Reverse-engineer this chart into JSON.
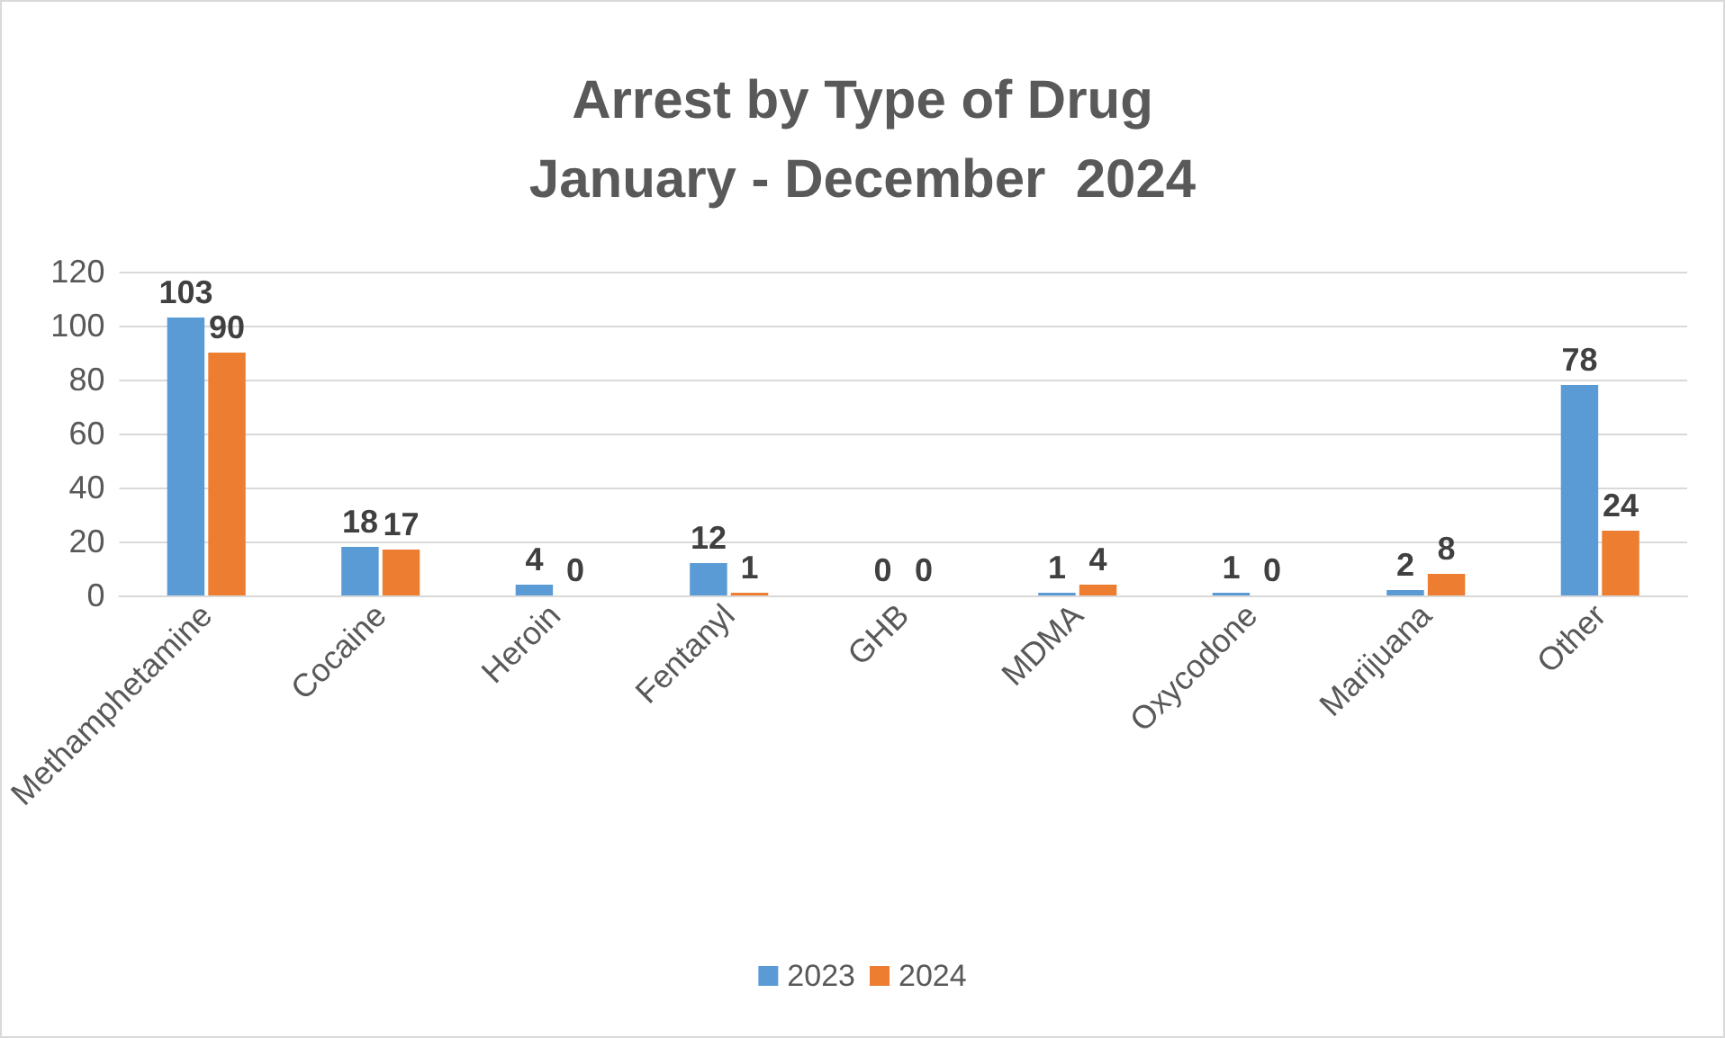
{
  "chart_data": {
    "type": "bar",
    "title": "Arrest by Type of Drug\nJanuary - December  2024",
    "categories": [
      "Methamphetamine",
      "Cocaine",
      "Heroin",
      "Fentanyl",
      "GHB",
      "MDMA",
      "Oxycodone",
      "Marijuana",
      "Other"
    ],
    "series": [
      {
        "name": "2023",
        "color": "#5b9bd5",
        "values": [
          103,
          18,
          4,
          12,
          0,
          1,
          1,
          2,
          78
        ]
      },
      {
        "name": "2024",
        "color": "#ed7d31",
        "values": [
          90,
          17,
          0,
          1,
          0,
          4,
          0,
          8,
          24
        ]
      }
    ],
    "ylim": [
      0,
      120
    ],
    "yticks": [
      0,
      20,
      40,
      60,
      80,
      100,
      120
    ],
    "grid": "y",
    "legend": "bottom",
    "data_labels": true
  }
}
